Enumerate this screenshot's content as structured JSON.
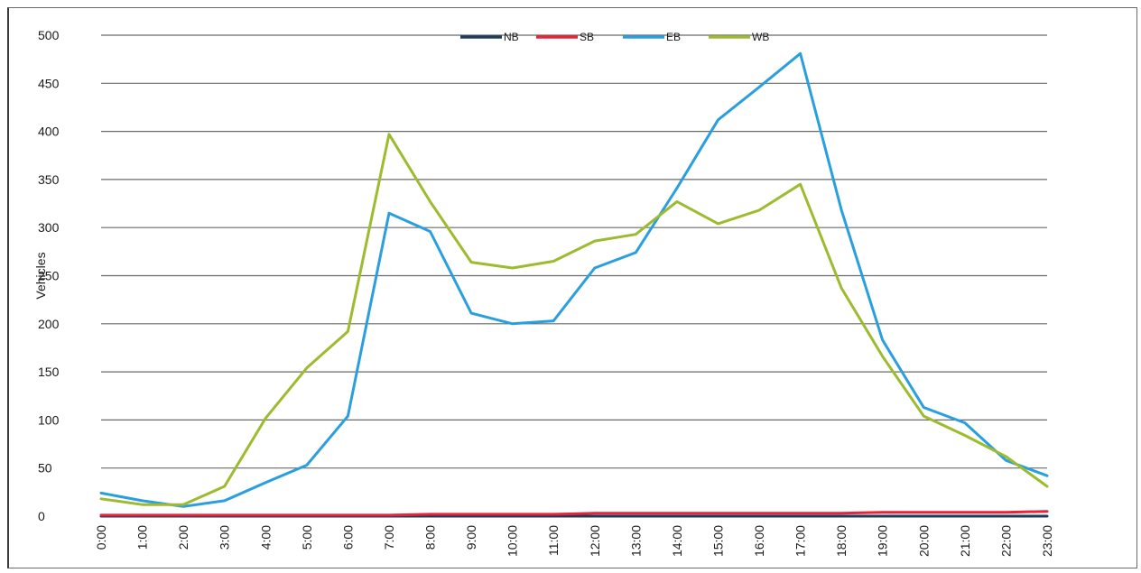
{
  "chart_data": {
    "type": "line",
    "title": "",
    "xlabel": "",
    "ylabel": "Vehicles",
    "ylim": [
      0,
      500
    ],
    "yticks": [
      0,
      50,
      100,
      150,
      200,
      250,
      300,
      350,
      400,
      450,
      500
    ],
    "grid": true,
    "legend_position": "top-center",
    "categories": [
      "0:00",
      "1:00",
      "2:00",
      "3:00",
      "4:00",
      "5:00",
      "6:00",
      "7:00",
      "8:00",
      "9:00",
      "10:00",
      "11:00",
      "12:00",
      "13:00",
      "14:00",
      "15:00",
      "16:00",
      "17:00",
      "18:00",
      "19:00",
      "20:00",
      "21:00",
      "22:00",
      "23:00"
    ],
    "series": [
      {
        "name": "NB",
        "color": "#1f3b5a",
        "values": [
          0,
          0,
          0,
          0,
          0,
          0,
          0,
          0,
          0,
          0,
          0,
          0,
          0,
          0,
          0,
          0,
          0,
          0,
          0,
          0,
          0,
          0,
          0,
          0
        ]
      },
      {
        "name": "SB",
        "color": "#e8243a",
        "values": [
          1,
          1,
          1,
          1,
          1,
          1,
          1,
          1,
          2,
          2,
          2,
          2,
          3,
          3,
          3,
          3,
          3,
          3,
          3,
          4,
          4,
          4,
          4,
          5
        ]
      },
      {
        "name": "EB",
        "color": "#2a9fe0",
        "values": [
          24,
          16,
          10,
          16,
          35,
          53,
          104,
          315,
          296,
          211,
          200,
          203,
          258,
          274,
          341,
          412,
          446,
          481,
          318,
          183,
          113,
          97,
          58,
          42
        ]
      },
      {
        "name": "WB",
        "color": "#9cbb2e",
        "values": [
          18,
          12,
          12,
          31,
          102,
          154,
          192,
          397,
          327,
          264,
          258,
          265,
          286,
          293,
          327,
          304,
          318,
          345,
          237,
          166,
          104,
          84,
          62,
          31
        ]
      }
    ]
  }
}
